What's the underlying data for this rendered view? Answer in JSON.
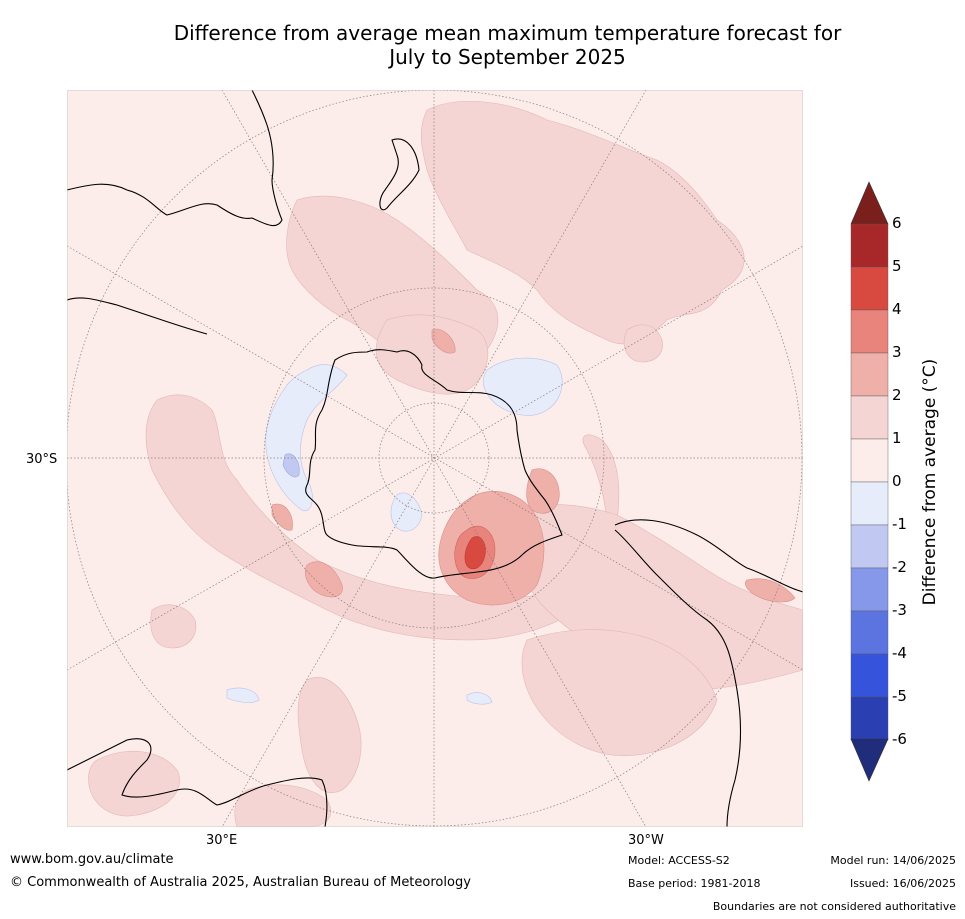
{
  "title": {
    "line1": "Difference from average mean maximum temperature forecast for",
    "line2": "July to September 2025"
  },
  "coords": {
    "lat_label": "30°S",
    "lon_east": "30°E",
    "lon_west": "30°W"
  },
  "colorbar": {
    "label": "Difference from average (°C)",
    "ticks": [
      "6",
      "5",
      "4",
      "3",
      "2",
      "1",
      "0",
      "-1",
      "-2",
      "-3",
      "-4",
      "-5",
      "-6"
    ],
    "bins": [
      {
        "range": "5 to 6",
        "color": "#a8282a"
      },
      {
        "range": "4 to 5",
        "color": "#d84a40"
      },
      {
        "range": "3 to 4",
        "color": "#e8847c"
      },
      {
        "range": "2 to 3",
        "color": "#efb0aa"
      },
      {
        "range": "1 to 2",
        "color": "#f4d5d3"
      },
      {
        "range": "0 to 1",
        "color": "#fcecea"
      },
      {
        "range": "-1 to 0",
        "color": "#e7ecfb"
      },
      {
        "range": "-2 to -1",
        "color": "#c1c9f2"
      },
      {
        "range": "-3 to -2",
        "color": "#8698ea"
      },
      {
        "range": "-4 to -3",
        "color": "#5c74e0"
      },
      {
        "range": "-5 to -4",
        "color": "#3653db"
      },
      {
        "range": "-6 to -5",
        "color": "#2a3fb2"
      }
    ],
    "over_color": "#7a1f1b",
    "under_color": "#1f2d7a"
  },
  "footer": {
    "website": "www.bom.gov.au/climate",
    "copyright": "© Commonwealth of Australia 2025, Australian Bureau of Meteorology",
    "model": "Model: ACCESS-S2",
    "base_period": "Base period: 1981-2018",
    "model_run": "Model run: 14/06/2025",
    "issued": "Issued: 16/06/2025",
    "disclaimer": "Boundaries are not considered authoritative"
  }
}
